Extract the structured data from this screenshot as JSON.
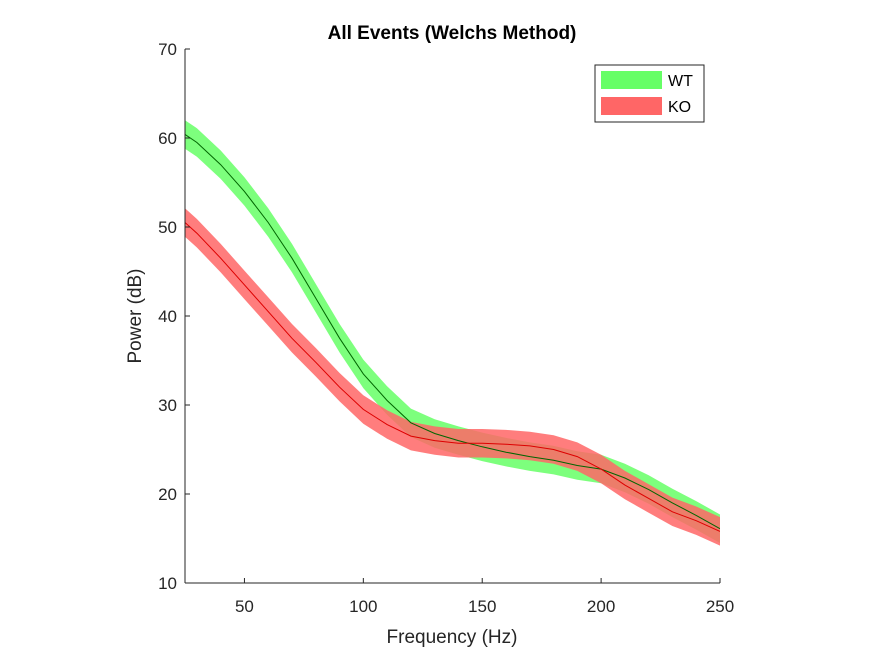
{
  "chart_data": {
    "type": "area",
    "title": "All Events (Welchs Method)",
    "xlabel": "Frequency (Hz)",
    "ylabel": "Power (dB)",
    "xlim": [
      25,
      250
    ],
    "ylim": [
      10,
      70
    ],
    "xticks": [
      50,
      100,
      150,
      200,
      250
    ],
    "yticks": [
      10,
      20,
      30,
      40,
      50,
      60,
      70
    ],
    "legend_position": "top-right",
    "grid": false,
    "series": [
      {
        "name": "WT",
        "band_color": "#66ff66",
        "line_color": "#006600",
        "band_width": 1.6,
        "x": [
          25,
          30,
          40,
          50,
          60,
          70,
          80,
          90,
          100,
          110,
          120,
          130,
          140,
          150,
          160,
          170,
          180,
          190,
          200,
          210,
          220,
          230,
          240,
          250
        ],
        "y": [
          60.4,
          59.5,
          57.0,
          54.0,
          50.5,
          46.5,
          42.0,
          37.5,
          33.5,
          30.5,
          28.0,
          26.8,
          26.0,
          25.3,
          24.7,
          24.2,
          23.8,
          23.2,
          22.8,
          21.8,
          20.5,
          19.0,
          17.6,
          16.1
        ]
      },
      {
        "name": "KO",
        "band_color": "#ff6666",
        "line_color": "#dd0000",
        "band_width": 1.6,
        "x": [
          25,
          30,
          40,
          50,
          60,
          70,
          80,
          90,
          100,
          110,
          120,
          130,
          140,
          150,
          160,
          170,
          180,
          190,
          200,
          210,
          220,
          230,
          240,
          250
        ],
        "y": [
          50.5,
          49.3,
          46.5,
          43.5,
          40.5,
          37.5,
          34.8,
          32.0,
          29.5,
          27.8,
          26.5,
          26.0,
          25.7,
          25.7,
          25.6,
          25.4,
          25.0,
          24.2,
          22.8,
          21.0,
          19.5,
          18.0,
          17.0,
          15.8
        ]
      }
    ]
  }
}
